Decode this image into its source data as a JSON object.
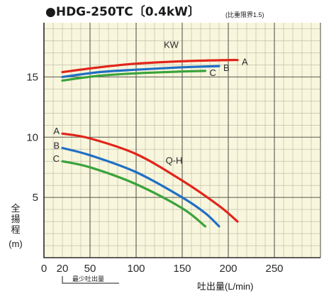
{
  "colors": {
    "background": "#f8f6dd",
    "grid_minor": "#b9b7a0",
    "grid_major": "#5a5a50",
    "series_a": "#e1251b",
    "series_b": "#1f6fc4",
    "series_c": "#3aa33a"
  },
  "title_mark": "●",
  "title_text": "HDG-250TC〔0.4kW〕",
  "note": "(比重限界1.5)",
  "chart_data": {
    "type": "line",
    "xlabel": "吐出量(L/min)",
    "ylabel": [
      "全",
      "揚",
      "程",
      "(m)"
    ],
    "xlim": [
      0,
      300
    ],
    "ylim": [
      0,
      19.5
    ],
    "grid": true,
    "x_ticks": [
      0,
      20,
      50,
      100,
      150,
      200,
      250
    ],
    "y_ticks": [
      5,
      10,
      15
    ],
    "min_flow_label": "最少吐出量",
    "min_flow_x": 20,
    "power_group_label": "KW",
    "head_group_label": "Q-H",
    "series": [
      {
        "name": "A",
        "group": "KW",
        "color": "#e1251b",
        "x": [
          20,
          60,
          100,
          150,
          200,
          210
        ],
        "y": [
          15.4,
          15.8,
          16.1,
          16.3,
          16.4,
          16.4
        ]
      },
      {
        "name": "B",
        "group": "KW",
        "color": "#1f6fc4",
        "x": [
          20,
          60,
          100,
          150,
          190
        ],
        "y": [
          15.0,
          15.4,
          15.6,
          15.8,
          15.9
        ]
      },
      {
        "name": "C",
        "group": "KW",
        "color": "#3aa33a",
        "x": [
          20,
          60,
          100,
          150,
          175
        ],
        "y": [
          14.7,
          15.1,
          15.3,
          15.45,
          15.5
        ]
      },
      {
        "name": "A",
        "group": "Q-H",
        "color": "#e1251b",
        "x": [
          20,
          50,
          100,
          150,
          190,
          210
        ],
        "y": [
          10.3,
          9.9,
          8.6,
          6.4,
          4.3,
          3.0
        ]
      },
      {
        "name": "B",
        "group": "Q-H",
        "color": "#1f6fc4",
        "x": [
          20,
          50,
          100,
          150,
          175,
          190
        ],
        "y": [
          9.1,
          8.5,
          7.1,
          5.0,
          3.7,
          2.6
        ]
      },
      {
        "name": "C",
        "group": "Q-H",
        "color": "#3aa33a",
        "x": [
          20,
          50,
          100,
          150,
          175
        ],
        "y": [
          8.0,
          7.5,
          6.1,
          4.1,
          2.6
        ]
      }
    ]
  }
}
